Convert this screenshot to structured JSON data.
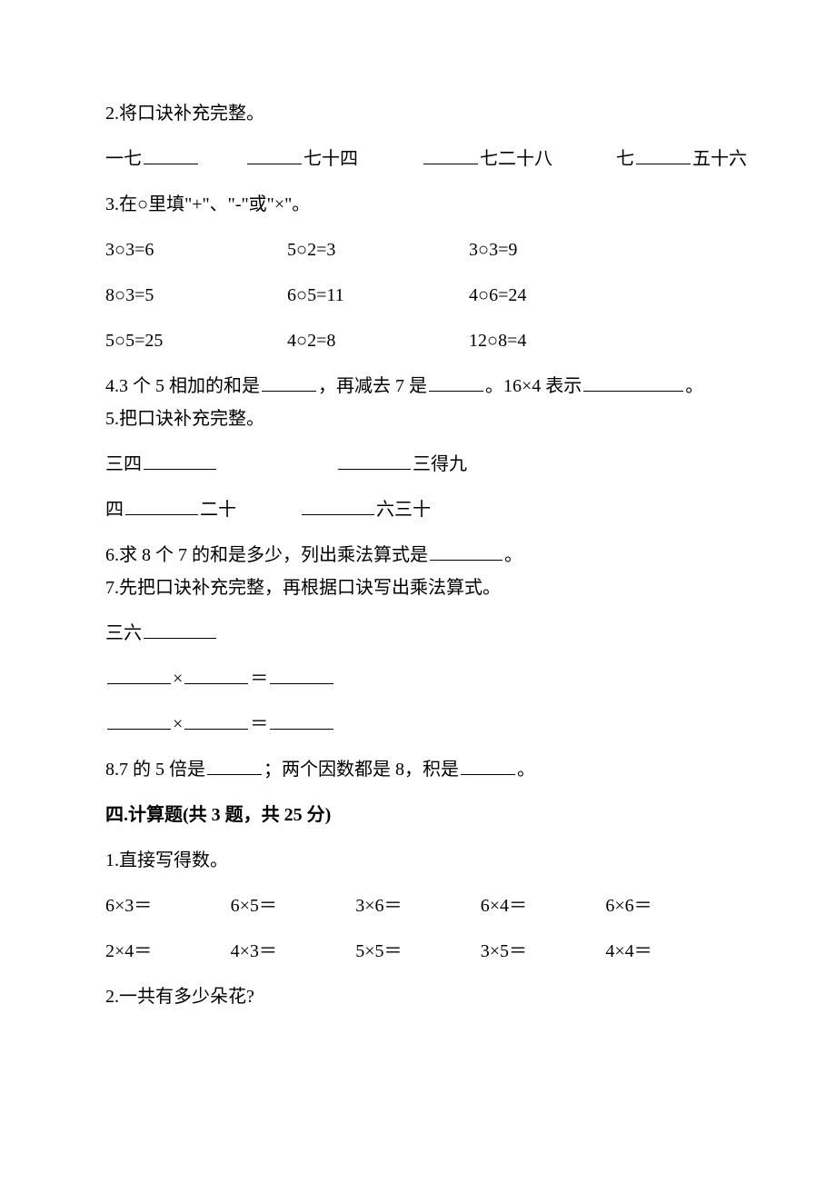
{
  "q2": {
    "prompt": "2.将口诀补充完整。",
    "items": [
      "一七",
      "七十四",
      "七二十八",
      "七",
      "五十六"
    ]
  },
  "q3": {
    "prompt": "3.在○里填\"+\"、\"-\"或\"×\"。",
    "rows": [
      [
        "3○3=6",
        "5○2=3",
        "3○3=9"
      ],
      [
        "8○3=5",
        "6○5=11",
        "4○6=24"
      ],
      [
        "5○5=25",
        "4○2=8",
        "12○8=4"
      ]
    ]
  },
  "q4": {
    "part1a": "4.3 个 5 相加的和是",
    "part1b": "，再减去 7 是",
    "part1c": "。16×4 表示",
    "part1d": "。"
  },
  "q5": {
    "prompt": "5.把口诀补充完整。",
    "r1a": "三四",
    "r1b": "三得九",
    "r2a": "四",
    "r2b": "二十",
    "r2c": "六三十"
  },
  "q6": {
    "a": "6.求 8 个 7 的和是多少，列出乘法算式是",
    "b": "。"
  },
  "q7": {
    "prompt": "7.先把口诀补充完整，再根据口诀写出乘法算式。",
    "r1": "三六",
    "times": "×",
    "eq": "＝"
  },
  "q8": {
    "a": "8.7 的 5 倍是",
    "b": "；两个因数都是 8，积是",
    "c": "。"
  },
  "section4": {
    "header": "四.计算题(共 3 题，共 25 分)"
  },
  "s4q1": {
    "prompt": "1.直接写得数。",
    "rows": [
      [
        "6×3＝",
        "6×5＝",
        "3×6＝",
        "6×4＝",
        "6×6＝"
      ],
      [
        "2×4＝",
        "4×3＝",
        "5×5＝",
        "3×5＝",
        "4×4＝"
      ]
    ]
  },
  "s4q2": {
    "prompt": "2.一共有多少朵花?"
  }
}
